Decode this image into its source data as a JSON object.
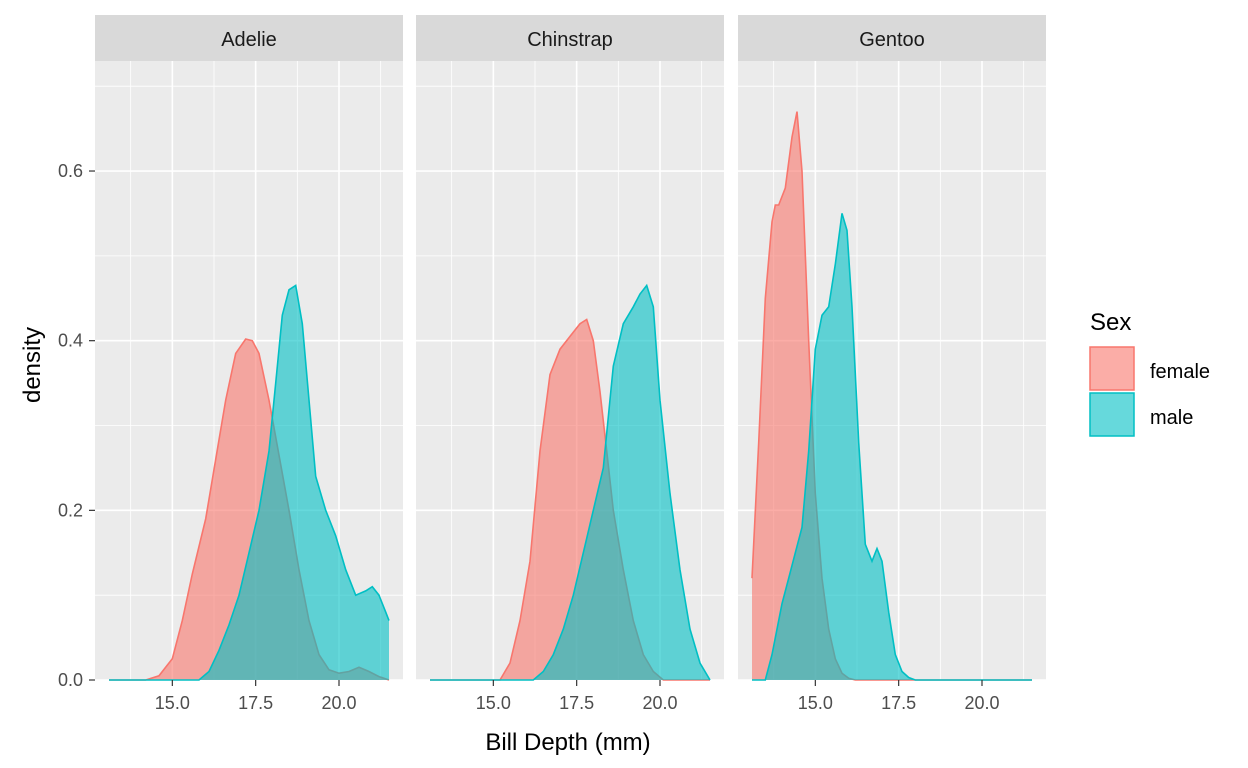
{
  "chart_data": {
    "type": "area",
    "subtype": "density",
    "facets": [
      "Adelie",
      "Chinstrap",
      "Gentoo"
    ],
    "xlabel": "Bill Depth (mm)",
    "ylabel": "density",
    "xlim": [
      13.1,
      21.5
    ],
    "ylim": [
      0,
      0.67
    ],
    "x_ticks": [
      15.0,
      17.5,
      20.0
    ],
    "x_tick_labels": [
      "15.0",
      "17.5",
      "20.0"
    ],
    "y_ticks": [
      0.0,
      0.2,
      0.4,
      0.6
    ],
    "y_tick_labels": [
      "0.0",
      "0.2",
      "0.4",
      "0.6"
    ],
    "grid": true,
    "legend": {
      "title": "Sex",
      "position": "right",
      "entries": [
        {
          "label": "female",
          "fill": "#F8766D"
        },
        {
          "label": "male",
          "fill": "#00BFC4"
        }
      ]
    },
    "panels": [
      {
        "facet": "Adelie",
        "series": [
          {
            "name": "female",
            "x": [
              13.1,
              14.2,
              14.6,
              15.0,
              15.3,
              15.6,
              16.0,
              16.3,
              16.6,
              16.9,
              17.2,
              17.4,
              17.6,
              17.9,
              18.2,
              18.5,
              18.8,
              19.1,
              19.4,
              19.7,
              20.0,
              20.3,
              20.6,
              20.9,
              21.2,
              21.5
            ],
            "y": [
              0.0,
              0.0,
              0.005,
              0.025,
              0.07,
              0.125,
              0.19,
              0.26,
              0.33,
              0.385,
              0.402,
              0.4,
              0.385,
              0.33,
              0.265,
              0.2,
              0.13,
              0.07,
              0.03,
              0.012,
              0.008,
              0.01,
              0.015,
              0.01,
              0.004,
              0.0
            ]
          },
          {
            "name": "male",
            "x": [
              13.1,
              15.8,
              16.1,
              16.4,
              16.7,
              17.0,
              17.3,
              17.6,
              17.9,
              18.1,
              18.3,
              18.5,
              18.7,
              18.9,
              19.1,
              19.3,
              19.6,
              19.9,
              20.2,
              20.5,
              20.8,
              21.0,
              21.2,
              21.4,
              21.5
            ],
            "y": [
              0.0,
              0.0,
              0.01,
              0.035,
              0.065,
              0.1,
              0.15,
              0.2,
              0.27,
              0.35,
              0.43,
              0.46,
              0.465,
              0.42,
              0.33,
              0.24,
              0.2,
              0.17,
              0.13,
              0.1,
              0.105,
              0.11,
              0.1,
              0.08,
              0.07
            ]
          }
        ]
      },
      {
        "facet": "Chinstrap",
        "series": [
          {
            "name": "female",
            "x": [
              13.1,
              15.2,
              15.5,
              15.8,
              16.1,
              16.4,
              16.7,
              17.0,
              17.3,
              17.6,
              17.8,
              18.0,
              18.2,
              18.4,
              18.6,
              18.9,
              19.2,
              19.5,
              19.8,
              20.1,
              21.5
            ],
            "y": [
              0.0,
              0.0,
              0.02,
              0.07,
              0.14,
              0.27,
              0.36,
              0.39,
              0.405,
              0.42,
              0.425,
              0.4,
              0.34,
              0.27,
              0.2,
              0.13,
              0.07,
              0.03,
              0.01,
              0.0,
              0.0
            ]
          },
          {
            "name": "male",
            "x": [
              13.1,
              16.2,
              16.5,
              16.8,
              17.1,
              17.4,
              17.7,
              18.0,
              18.3,
              18.6,
              18.9,
              19.2,
              19.4,
              19.6,
              19.8,
              20.0,
              20.3,
              20.6,
              20.9,
              21.2,
              21.5
            ],
            "y": [
              0.0,
              0.0,
              0.01,
              0.03,
              0.06,
              0.1,
              0.15,
              0.2,
              0.25,
              0.37,
              0.42,
              0.44,
              0.455,
              0.465,
              0.44,
              0.33,
              0.22,
              0.13,
              0.06,
              0.02,
              0.0
            ]
          }
        ]
      },
      {
        "facet": "Gentoo",
        "series": [
          {
            "name": "female",
            "x": [
              13.1,
              13.3,
              13.5,
              13.7,
              13.8,
              13.9,
              14.1,
              14.3,
              14.45,
              14.6,
              14.8,
              15.0,
              15.2,
              15.4,
              15.6,
              15.8,
              16.0,
              16.2,
              21.5
            ],
            "y": [
              0.12,
              0.28,
              0.45,
              0.54,
              0.56,
              0.56,
              0.58,
              0.64,
              0.67,
              0.6,
              0.4,
              0.22,
              0.12,
              0.06,
              0.025,
              0.008,
              0.002,
              0.0,
              0.0
            ]
          },
          {
            "name": "male",
            "x": [
              13.1,
              13.5,
              13.7,
              14.0,
              14.2,
              14.4,
              14.6,
              14.8,
              15.0,
              15.2,
              15.4,
              15.6,
              15.8,
              15.95,
              16.1,
              16.3,
              16.5,
              16.7,
              16.85,
              17.0,
              17.2,
              17.4,
              17.6,
              17.8,
              18.0,
              21.5
            ],
            "y": [
              0.0,
              0.0,
              0.03,
              0.09,
              0.12,
              0.15,
              0.18,
              0.27,
              0.39,
              0.43,
              0.44,
              0.49,
              0.55,
              0.53,
              0.44,
              0.28,
              0.16,
              0.14,
              0.155,
              0.14,
              0.08,
              0.03,
              0.01,
              0.003,
              0.0,
              0.0
            ]
          }
        ]
      }
    ]
  }
}
